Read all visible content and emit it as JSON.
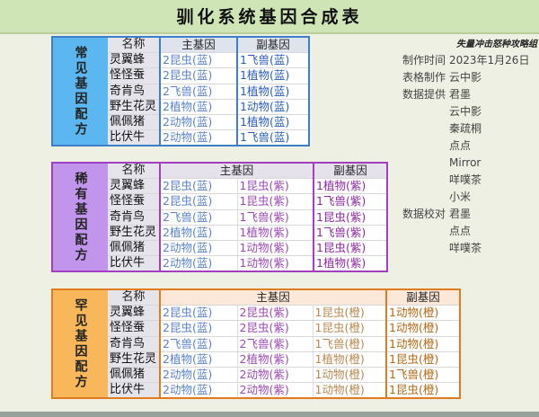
{
  "title": "驯化系统基因合成表",
  "headers": {
    "name": "名称",
    "main": "主基因",
    "sub": "副基因"
  },
  "common": {
    "label": "常见基因配方",
    "rows": [
      [
        "灵翼蜂",
        "2昆虫(蓝)",
        "1飞兽(蓝)"
      ],
      [
        "怪怪蚕",
        "2昆虫(蓝)",
        "1植物(蓝)"
      ],
      [
        "奇肯鸟",
        "2飞兽(蓝)",
        "1植物(蓝)"
      ],
      [
        "野生花灵",
        "2植物(蓝)",
        "1动物(蓝)"
      ],
      [
        "佩佩猪",
        "2动物(蓝)",
        "1植物(蓝)"
      ],
      [
        "比伏牛",
        "2动物(蓝)",
        "1飞兽(蓝)"
      ]
    ]
  },
  "rare": {
    "label": "稀有基因配方",
    "rows": [
      [
        "灵翼蜂",
        "2昆虫(蓝)",
        "1昆虫(紫)",
        "1植物(紫)"
      ],
      [
        "怪怪蚕",
        "2昆虫(蓝)",
        "1昆虫(紫)",
        "1飞兽(紫)"
      ],
      [
        "奇肯鸟",
        "2飞兽(蓝)",
        "1飞兽(紫)",
        "1昆虫(紫)"
      ],
      [
        "野生花灵",
        "2植物(蓝)",
        "1植物(紫)",
        "1飞兽(紫)"
      ],
      [
        "佩佩猪",
        "2动物(蓝)",
        "1动物(紫)",
        "1昆虫(紫)"
      ],
      [
        "比伏牛",
        "2动物(蓝)",
        "1动物(紫)",
        "1植物(紫)"
      ]
    ]
  },
  "epic": {
    "label": "罕见基因配方",
    "rows": [
      [
        "灵翼蜂",
        "2昆虫(蓝)",
        "2昆虫(紫)",
        "1昆虫(橙)",
        "1动物(橙)"
      ],
      [
        "怪怪蚕",
        "2昆虫(蓝)",
        "2昆虫(紫)",
        "1昆虫(橙)",
        "1动物(橙)"
      ],
      [
        "奇肯鸟",
        "2飞兽(蓝)",
        "2飞兽(紫)",
        "1飞兽(橙)",
        "1动物(橙)"
      ],
      [
        "野生花灵",
        "2植物(蓝)",
        "2植物(紫)",
        "1植物(橙)",
        "1昆虫(橙)"
      ],
      [
        "佩佩猪",
        "2动物(蓝)",
        "2动物(紫)",
        "1动物(橙)",
        "1飞兽(橙)"
      ],
      [
        "比伏牛",
        "2动物(蓝)",
        "2动物(紫)",
        "1动物(橙)",
        "1昆虫(橙)"
      ]
    ]
  },
  "credits": {
    "org": "失量冲击怒种攻略组",
    "items": [
      {
        "k": "制作时间",
        "v": [
          "2023年1月26日"
        ]
      },
      {
        "k": "表格制作",
        "v": [
          "云中影"
        ]
      },
      {
        "k": "数据提供",
        "v": [
          "君墨",
          "云中影",
          "秦疏桐",
          "点点",
          "Mirror",
          "咩噗茶",
          "小米"
        ]
      },
      {
        "k": "数据校对",
        "v": [
          "君墨",
          "点点",
          "咩噗茶"
        ]
      }
    ]
  }
}
